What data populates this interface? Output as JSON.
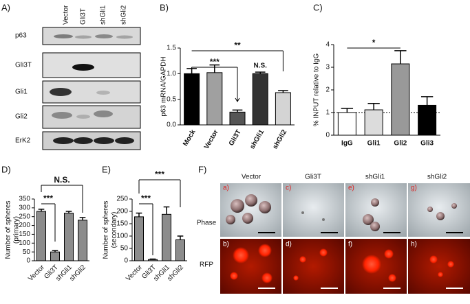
{
  "blot": {
    "panel_label": "A)",
    "lanes": [
      "Vector",
      "Gli3T",
      "shGli1",
      "shGli2"
    ],
    "rows": [
      "p63",
      "Gli3T",
      "Gli1",
      "Gli2",
      "ErK2"
    ]
  },
  "chart_data": [
    {
      "type": "bar",
      "panel_label": "B)",
      "y_label": [
        "p63 mRNA/GAPDH"
      ],
      "categories": [
        "Mock",
        "Vector",
        "Gli3T",
        "shGli1",
        "shGli2"
      ],
      "values": [
        1.0,
        1.02,
        0.25,
        1.0,
        0.63
      ],
      "errors": [
        0.1,
        0.15,
        0.04,
        0.03,
        0.04
      ],
      "colors": [
        "#000000",
        "#a0a0a0",
        "#555555",
        "#333333",
        "#d4d4d4"
      ],
      "ylim": [
        0,
        1.5
      ],
      "yticks": [
        {
          "value": 0,
          "label": "0.0"
        },
        {
          "value": 0.5,
          "label": "0.5"
        },
        {
          "value": 1,
          "label": "1.0"
        },
        {
          "value": 1.5,
          "label": "1.5"
        }
      ],
      "annotations": [
        "***",
        "**",
        "N.S."
      ]
    },
    {
      "type": "bar",
      "panel_label": "C)",
      "y_label": [
        "% INPUT relative to IgG"
      ],
      "categories": [
        "IgG",
        "Gli1",
        "Gli2",
        "Gli3"
      ],
      "values": [
        1.0,
        1.12,
        3.15,
        1.32
      ],
      "errors": [
        0.18,
        0.28,
        0.58,
        0.38
      ],
      "colors": [
        "#ffffff",
        "#dcdcdc",
        "#999999",
        "#000000"
      ],
      "ylim": [
        0,
        4
      ],
      "yticks": [
        0,
        1,
        2,
        3,
        4
      ],
      "reference_line": 1,
      "annotations": [
        "*"
      ]
    },
    {
      "type": "bar",
      "panel_label": "D)",
      "y_label": [
        "Number of spheres",
        "(primary)"
      ],
      "categories": [
        "Vector",
        "Gli3T",
        "shGli1",
        "shGli2"
      ],
      "values": [
        280,
        50,
        270,
        230
      ],
      "errors": [
        12,
        8,
        10,
        15
      ],
      "colors": [
        "#8c8c8c",
        "#8c8c8c",
        "#8c8c8c",
        "#8c8c8c"
      ],
      "ylim": [
        0,
        350
      ],
      "yticks": [
        0,
        50,
        100,
        150,
        200,
        250,
        300,
        350
      ],
      "annotations": [
        "N.S.",
        "***"
      ]
    },
    {
      "type": "bar",
      "panel_label": "E)",
      "y_label": [
        "Number of spheres",
        "(secondary)"
      ],
      "categories": [
        "Vector",
        "Gli3T",
        "shGli1",
        "shGli2"
      ],
      "values": [
        178,
        5,
        188,
        85
      ],
      "errors": [
        15,
        2,
        30,
        15
      ],
      "colors": [
        "#8c8c8c",
        "#8c8c8c",
        "#8c8c8c",
        "#8c8c8c"
      ],
      "ylim": [
        0,
        250
      ],
      "yticks": [
        0,
        50,
        100,
        150,
        200,
        250
      ],
      "annotations": [
        "***",
        "***"
      ]
    }
  ],
  "micrographs": {
    "panel_label": "F)",
    "columns": [
      "Vector",
      "Gli3T",
      "shGli1",
      "shGli2"
    ],
    "rows": [
      "Phase",
      "RFP"
    ],
    "image_labels": [
      [
        "a)",
        "c)",
        "e)",
        "g)"
      ],
      [
        "b)",
        "d)",
        "f)",
        "h)"
      ]
    ]
  }
}
